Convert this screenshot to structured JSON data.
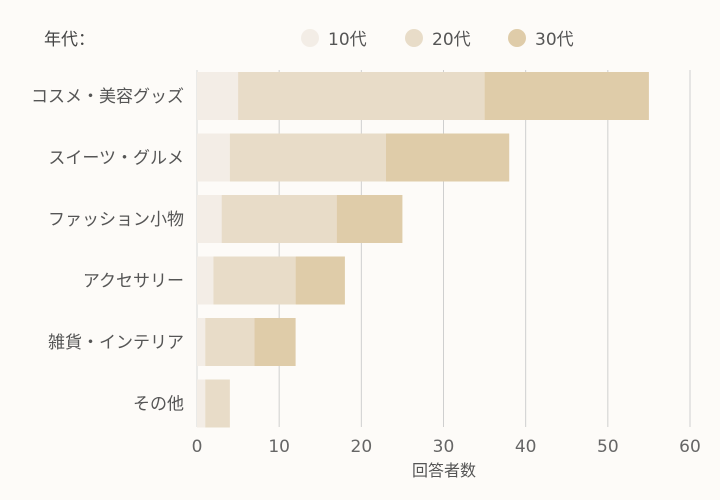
{
  "legend": {
    "title": "年代："
  },
  "chart_data": {
    "type": "bar",
    "orientation": "horizontal",
    "stacked": true,
    "categories": [
      "コスメ・美容グッズ",
      "スイーツ・グルメ",
      "ファッション小物",
      "アクセサリー",
      "雑貨・インテリア",
      "その他"
    ],
    "series": [
      {
        "name": "10代",
        "color": "#f3ede6",
        "values": [
          5,
          4,
          3,
          2,
          1,
          1
        ]
      },
      {
        "name": "20代",
        "color": "#e8dcc8",
        "values": [
          30,
          19,
          14,
          10,
          6,
          3
        ]
      },
      {
        "name": "30代",
        "color": "#dfcca9",
        "values": [
          20,
          15,
          8,
          6,
          5,
          0
        ]
      }
    ],
    "xlabel": "回答者数",
    "xlim": [
      0,
      60
    ],
    "xticks": [
      0,
      10,
      20,
      30,
      40,
      50,
      60
    ],
    "grid": true,
    "legend_position": "top"
  }
}
